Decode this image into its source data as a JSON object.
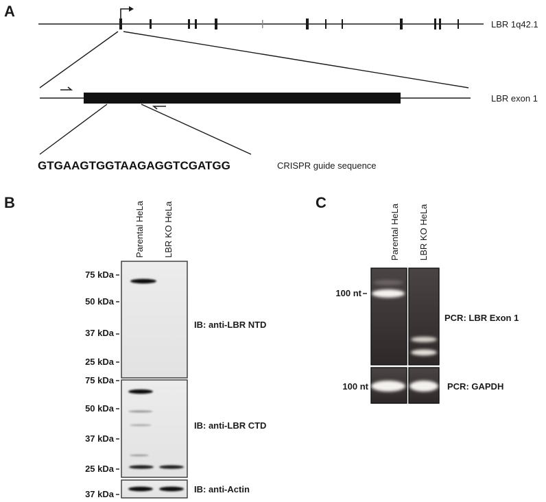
{
  "panel_a": {
    "letter": "A",
    "gene_label": "LBR 1q42.1",
    "exon_label": "LBR exon 1",
    "guide_sequence": "GTGAAGTGGTAAGAGGTCGATGG",
    "guide_label": "CRISPR guide sequence"
  },
  "panel_b": {
    "letter": "B",
    "lanes": [
      "Parental HeLa",
      "LBR KO HeLa"
    ],
    "ntd": {
      "label": "IB: anti-LBR NTD",
      "markers": [
        "75 kDa",
        "50 kDa",
        "37 kDa",
        "25 kDa"
      ]
    },
    "ctd": {
      "label": "IB: anti-LBR CTD",
      "markers": [
        "75 kDa",
        "50 kDa",
        "37 kDa",
        "25 kDa"
      ]
    },
    "actin": {
      "label": "IB: anti-Actin",
      "markers": [
        "37 kDa"
      ]
    }
  },
  "panel_c": {
    "letter": "C",
    "lanes": [
      "Parental HeLa",
      "LBR KO HeLa"
    ],
    "exon_gel": {
      "marker": "100 nt",
      "label": "PCR: LBR Exon 1"
    },
    "gapdh_gel": {
      "marker": "100 nt",
      "label": "PCR: GAPDH"
    }
  },
  "colors": {
    "line": "#1a1a1a",
    "exon_box": "#111111",
    "blot_background": "#e9e9e9",
    "gel_background": "#3a3434",
    "gel_band": "#f4f2ee"
  }
}
